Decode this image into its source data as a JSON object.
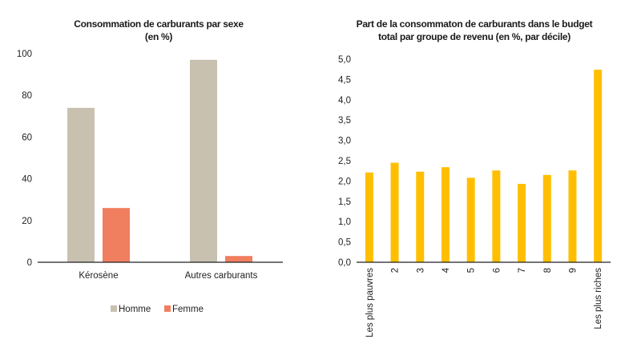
{
  "chart_data": [
    {
      "type": "bar",
      "title": [
        "Consommation de carburants par sexe",
        "(en %)"
      ],
      "categories": [
        "Kérosène",
        "Autres carburants"
      ],
      "series": [
        {
          "name": "Homme",
          "values": [
            74,
            97
          ],
          "color": "#c8c1b0"
        },
        {
          "name": "Femme",
          "values": [
            26,
            3
          ],
          "color": "#f07f5f"
        }
      ],
      "yticks": [
        "0",
        "20",
        "40",
        "60",
        "80",
        "100"
      ],
      "ylim": [
        0,
        100
      ],
      "grid": false,
      "legend": "bottom"
    },
    {
      "type": "bar",
      "title": [
        "Part de la consommaton de carburants dans le budget",
        "total par groupe de revenu (en %, par décile)"
      ],
      "categories": [
        "Les plus pauvres",
        "2",
        "3",
        "4",
        "5",
        "6",
        "7",
        "8",
        "9",
        "Les plus riches"
      ],
      "values": [
        2.21,
        2.45,
        2.23,
        2.34,
        2.08,
        2.26,
        1.93,
        2.15,
        2.26,
        4.74
      ],
      "color": "#ffbf00",
      "yticks": [
        "0,0",
        "0,5",
        "1,0",
        "1,5",
        "2,0",
        "2,5",
        "3,0",
        "3,5",
        "4,0",
        "4,5",
        "5,0"
      ],
      "ylim": [
        0,
        5
      ],
      "grid": false
    }
  ]
}
